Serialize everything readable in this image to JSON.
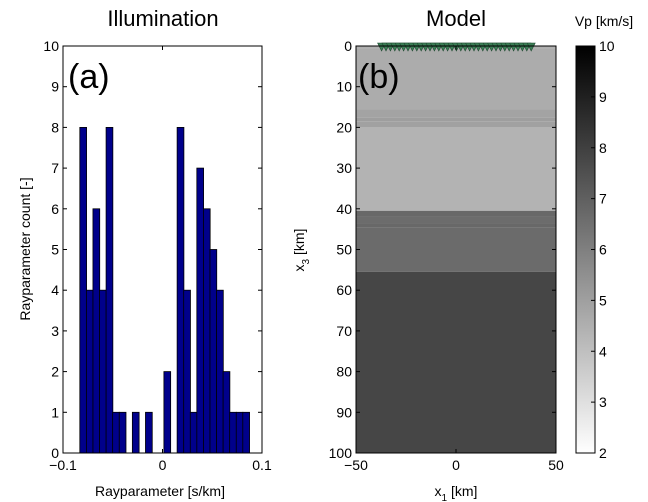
{
  "chart_data": [
    {
      "type": "bar",
      "title": "Illumination",
      "panel_label": "(a)",
      "xlabel": "Rayparameter [s/km]",
      "ylabel": "Rayparameter count [-]",
      "xlim": [
        -0.1,
        0.1
      ],
      "ylim": [
        0,
        10
      ],
      "xticks": [
        -0.1,
        0,
        0.1
      ],
      "xtick_labels": [
        "−0.1",
        "0",
        "0.1"
      ],
      "yticks": [
        0,
        1,
        2,
        3,
        4,
        5,
        6,
        7,
        8,
        9,
        10
      ],
      "ytick_labels": [
        "0",
        "1",
        "2",
        "3",
        "4",
        "5",
        "6",
        "7",
        "8",
        "9",
        "10"
      ],
      "bar_color": "#00008b",
      "bar_width": 0.0068,
      "x": [
        -0.0797,
        -0.0731,
        -0.0665,
        -0.0599,
        -0.0533,
        -0.0467,
        -0.0401,
        -0.0269,
        -0.0137,
        0.0048,
        0.0181,
        0.0247,
        0.0313,
        0.0379,
        0.0445,
        0.0511,
        0.0577,
        0.0643,
        0.0709,
        0.0775,
        0.0841
      ],
      "values": [
        8,
        4,
        6,
        4,
        8,
        1,
        1,
        1,
        1,
        2,
        8,
        4,
        1,
        7,
        6,
        5,
        4,
        2,
        1,
        1,
        1
      ],
      "grid": false
    },
    {
      "type": "heatmap",
      "title": "Model",
      "panel_label": "(b)",
      "xlabel_main": "x",
      "xlabel_sub": "1",
      "xlabel_unit": " [km]",
      "ylabel_main": "x",
      "ylabel_sub": "3",
      "ylabel_unit": " [km]",
      "xlim": [
        -50,
        50
      ],
      "ylim": [
        0,
        100
      ],
      "y_reversed": true,
      "xticks": [
        -50,
        0,
        50
      ],
      "xtick_labels": [
        "−50",
        "0",
        "50"
      ],
      "yticks": [
        0,
        10,
        20,
        30,
        40,
        50,
        60,
        70,
        80,
        90,
        100
      ],
      "ytick_labels": [
        "0",
        "10",
        "20",
        "30",
        "40",
        "50",
        "60",
        "70",
        "80",
        "90",
        "100"
      ],
      "colormap": "gray_reversed",
      "layers": [
        {
          "top_km": 0,
          "bottom_km": 0.6,
          "vp": 4.5
        },
        {
          "top_km": 0.6,
          "bottom_km": 15.5,
          "vp": 4.6
        },
        {
          "top_km": 15.5,
          "bottom_km": 17.5,
          "vp": 4.9
        },
        {
          "top_km": 17.5,
          "bottom_km": 18.5,
          "vp": 5.05
        },
        {
          "top_km": 18.5,
          "bottom_km": 20.0,
          "vp": 4.95
        },
        {
          "top_km": 20.0,
          "bottom_km": 40.5,
          "vp": 4.4
        },
        {
          "top_km": 40.5,
          "bottom_km": 42.0,
          "vp": 6.75
        },
        {
          "top_km": 42.0,
          "bottom_km": 43.5,
          "vp": 6.6
        },
        {
          "top_km": 43.5,
          "bottom_km": 44.5,
          "vp": 6.75
        },
        {
          "top_km": 44.5,
          "bottom_km": 55.5,
          "vp": 6.65
        },
        {
          "top_km": 55.5,
          "bottom_km": 100,
          "vp": 7.8
        }
      ],
      "stations": {
        "marker": "inverted-triangle",
        "color": "#3c7e56",
        "edge_color": "#1e4a31",
        "x_km": [
          -37.2,
          -35.0,
          -32.8,
          -30.6,
          -28.4,
          -26.2,
          -24.0,
          -21.8,
          -19.6,
          -17.4,
          -15.2,
          -13.0,
          -10.8,
          -8.6,
          -6.4,
          -4.2,
          -2.0,
          0.2,
          2.4,
          4.6,
          6.8,
          9.0,
          11.2,
          13.4,
          15.6,
          17.8,
          20.0,
          22.2,
          24.4,
          26.6,
          28.8,
          31.0,
          33.2,
          35.4,
          37.6
        ]
      },
      "colorbar": {
        "label": "Vp [km/s]",
        "range": [
          2,
          10
        ],
        "ticks": [
          2,
          3,
          4,
          5,
          6,
          7,
          8,
          9,
          10
        ],
        "tick_labels": [
          "2",
          "3",
          "4",
          "5",
          "6",
          "7",
          "8",
          "9",
          "10"
        ]
      }
    }
  ]
}
